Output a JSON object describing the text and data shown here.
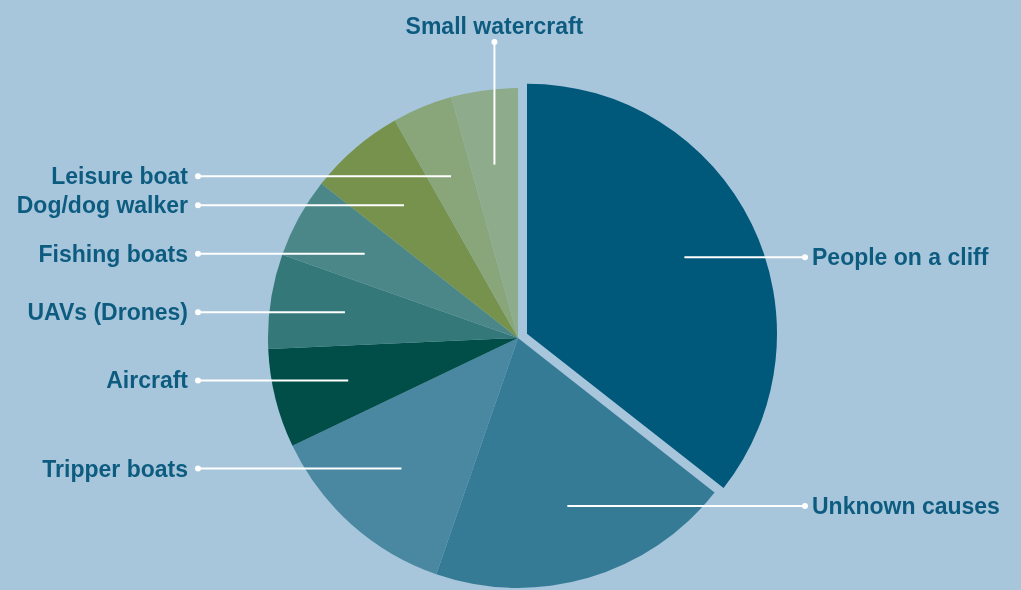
{
  "chart_data": {
    "type": "pie",
    "categories": [
      "People on a cliff",
      "Unknown causes",
      "Tripper boats",
      "Aircraft",
      "UAVs (Drones)",
      "Fishing boats",
      "Dog/dog walker",
      "Leisure boat",
      "Small watercraft"
    ],
    "values": [
      35.6,
      19.7,
      12.6,
      6.4,
      6.1,
      5.2,
      6.2,
      3.9,
      4.3
    ],
    "colors": [
      "#00587a",
      "#367b96",
      "#4a87a0",
      "#004e47",
      "#35787a",
      "#4b8789",
      "#76924c",
      "#88a67a",
      "#8eab8c"
    ]
  }
}
